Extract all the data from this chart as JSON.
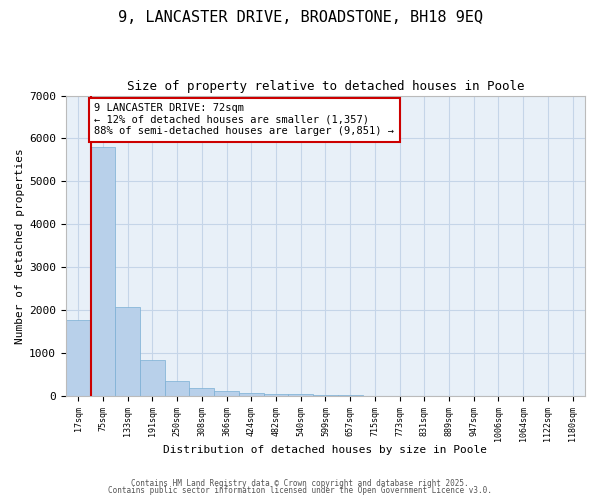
{
  "title1": "9, LANCASTER DRIVE, BROADSTONE, BH18 9EQ",
  "title2": "Size of property relative to detached houses in Poole",
  "xlabel": "Distribution of detached houses by size in Poole",
  "ylabel": "Number of detached properties",
  "annotation_line1": "9 LANCASTER DRIVE: 72sqm",
  "annotation_line2": "← 12% of detached houses are smaller (1,357)",
  "annotation_line3": "88% of semi-detached houses are larger (9,851) →",
  "bar_color": "#b8d0ea",
  "bar_edge_color": "#7aafd4",
  "red_line_color": "#cc0000",
  "annotation_box_edge": "#cc0000",
  "fig_background_color": "#ffffff",
  "plot_background_color": "#e8f0f8",
  "grid_color": "#c5d5e8",
  "categories": [
    "17sqm",
    "75sqm",
    "133sqm",
    "191sqm",
    "250sqm",
    "308sqm",
    "366sqm",
    "424sqm",
    "482sqm",
    "540sqm",
    "599sqm",
    "657sqm",
    "715sqm",
    "773sqm",
    "831sqm",
    "889sqm",
    "947sqm",
    "1006sqm",
    "1064sqm",
    "1122sqm",
    "1180sqm"
  ],
  "values": [
    1780,
    5800,
    2080,
    830,
    350,
    200,
    110,
    75,
    55,
    38,
    25,
    15,
    8,
    4,
    2,
    1,
    1,
    0,
    0,
    0,
    0
  ],
  "red_line_x": 0.5,
  "ylim": [
    0,
    7000
  ],
  "yticks": [
    0,
    1000,
    2000,
    3000,
    4000,
    5000,
    6000,
    7000
  ],
  "footer1": "Contains HM Land Registry data © Crown copyright and database right 2025.",
  "footer2": "Contains public sector information licensed under the Open Government Licence v3.0."
}
